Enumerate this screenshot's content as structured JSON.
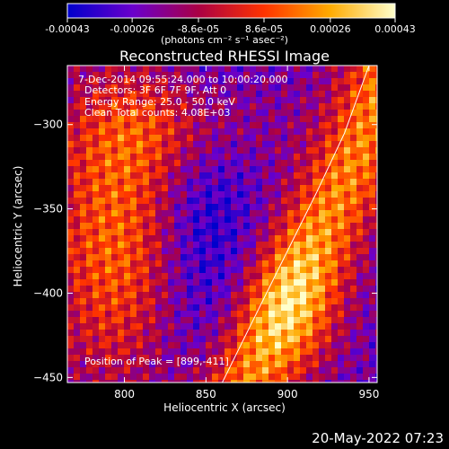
{
  "colorbar": {
    "ticks": [
      "-0.00043",
      "-0.00026",
      "-8.6e-05",
      "8.6e-05",
      "0.00026",
      "0.00043"
    ],
    "tick_values": [
      -0.00043,
      -0.00026,
      -8.6e-05,
      8.6e-05,
      0.00026,
      0.00043
    ],
    "range": [
      -0.00043,
      0.00043
    ],
    "label": "(photons cm⁻² s⁻¹ asec⁻²)",
    "colors": [
      "#0000cc",
      "#6a00cc",
      "#aa0044",
      "#ff3300",
      "#ffaa00",
      "#ffffcc"
    ]
  },
  "chart_data": {
    "type": "heatmap",
    "title": "Reconstructed RHESSI Image",
    "xlabel": "Heliocentric X (arcsec)",
    "ylabel": "Heliocentric Y (arcsec)",
    "xlim": [
      765,
      955
    ],
    "ylim": [
      -453,
      -265
    ],
    "xticks": [
      800,
      850,
      900,
      950
    ],
    "yticks": [
      -300,
      -350,
      -400,
      -450
    ],
    "annotations": {
      "time": "7-Dec-2014 09:55:24.000 to 10:00:20.000",
      "detectors": "Detectors: 3F 6F 7F 9F, Att 0",
      "energy": "Energy Range: 25.0 - 50.0 keV",
      "clean": "Clean     Total counts: 4.08E+03",
      "peak": "Position of Peak = [899,-411]"
    },
    "limb": [
      [
        860,
        -453
      ],
      [
        882,
        -410
      ],
      [
        900,
        -375
      ],
      [
        918,
        -340
      ],
      [
        935,
        -305
      ],
      [
        950,
        -265
      ]
    ]
  },
  "timestamp": "20-May-2022 07:23"
}
